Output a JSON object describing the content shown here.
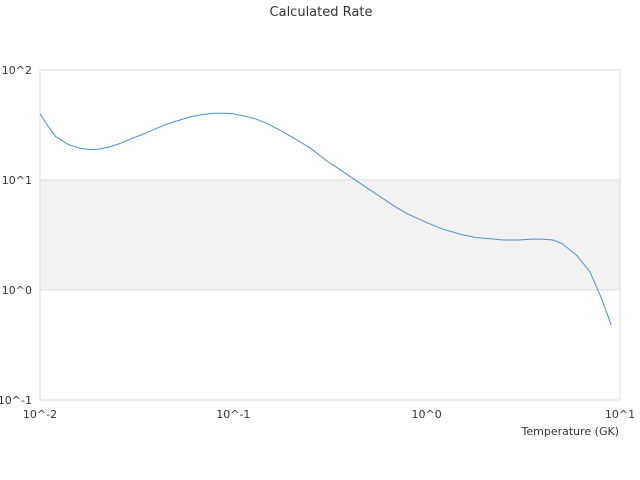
{
  "chart_data": {
    "type": "line",
    "title": "Calculated Rate",
    "xlabel": "Temperature (GK)",
    "ylabel": "",
    "x_scale": "log",
    "y_scale": "log",
    "xlim": [
      0.01,
      10
    ],
    "ylim": [
      0.1,
      100
    ],
    "x_ticks": [
      {
        "value": 0.01,
        "label": "10^-2"
      },
      {
        "value": 0.1,
        "label": "10^-1"
      },
      {
        "value": 1,
        "label": "10^0"
      },
      {
        "value": 10,
        "label": "10^1"
      }
    ],
    "y_ticks": [
      {
        "value": 0.1,
        "label": "10^-1"
      },
      {
        "value": 1,
        "label": "10^0"
      },
      {
        "value": 10,
        "label": "10^1"
      },
      {
        "value": 100,
        "label": "10^2"
      }
    ],
    "band_fill": "#f2f2f2",
    "grid_color": "#dddddd",
    "line_color": "#4a90d9",
    "grid": true,
    "legend": "none",
    "series": [
      {
        "x": [
          0.01,
          0.011,
          0.012,
          0.014,
          0.016,
          0.018,
          0.02,
          0.023,
          0.026,
          0.03,
          0.035,
          0.04,
          0.045,
          0.05,
          0.06,
          0.07,
          0.08,
          0.09,
          0.1,
          0.115,
          0.13,
          0.15,
          0.18,
          0.21,
          0.25,
          0.3,
          0.35,
          0.4,
          0.5,
          0.6,
          0.7,
          0.8,
          1.0,
          1.2,
          1.5,
          1.8,
          2.0,
          2.5,
          3.0,
          3.5,
          4.0,
          4.5,
          5.0,
          6.0,
          7.0,
          8.0,
          9.0
        ],
        "y": [
          40,
          31,
          25,
          21,
          19.5,
          18.9,
          19.0,
          20.0,
          21.5,
          24.0,
          26.5,
          29.5,
          32.0,
          34.0,
          37.5,
          39.5,
          40.5,
          40.5,
          40.0,
          38.0,
          36.0,
          32.5,
          27.5,
          23.5,
          19.5,
          15.2,
          12.7,
          10.8,
          8.3,
          6.7,
          5.6,
          4.9,
          4.1,
          3.6,
          3.2,
          3.0,
          2.95,
          2.85,
          2.85,
          2.9,
          2.9,
          2.85,
          2.65,
          2.05,
          1.45,
          0.85,
          0.48
        ]
      }
    ]
  }
}
